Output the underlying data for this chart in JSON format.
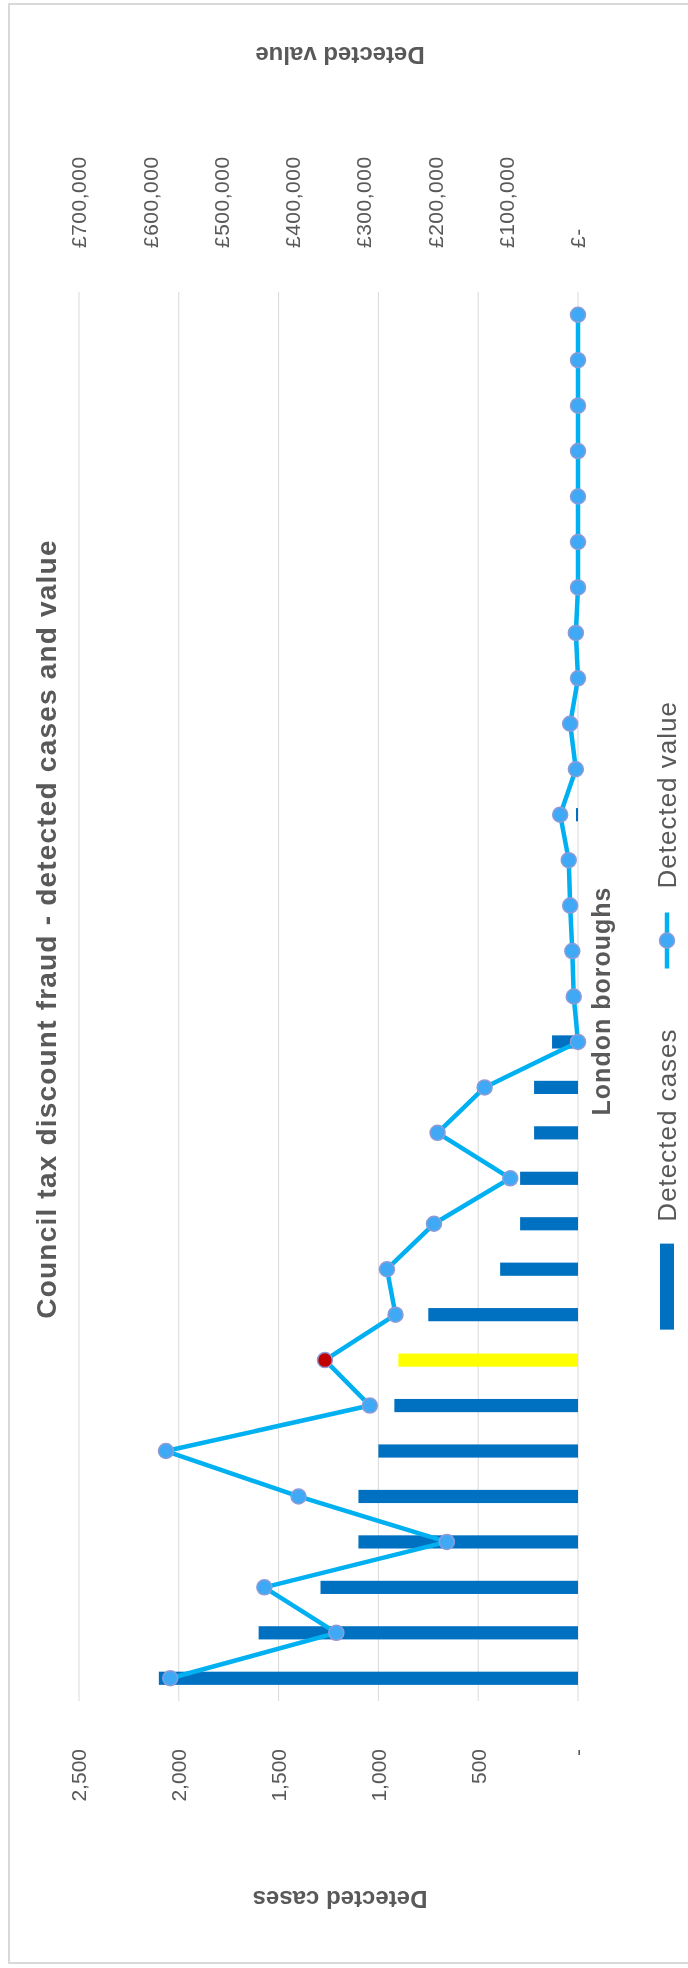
{
  "chart_data": {
    "type": "bar",
    "orientation": "horizontal",
    "title": "Council tax discount fraud - detected cases and value",
    "ylabel": "London boroughs",
    "xlabel": "Detected cases",
    "x2label": "Detected value",
    "categories": [
      null,
      null,
      null,
      null,
      null,
      null,
      null,
      null,
      null,
      null,
      null,
      null,
      null,
      null,
      null,
      null,
      null,
      null,
      null,
      null,
      null,
      null,
      null,
      null,
      null,
      null,
      null,
      null,
      null,
      null,
      null
    ],
    "series": [
      {
        "name": "Detected cases",
        "color": "#0070c0",
        "colors": [
          "#0070c0",
          "#0070c0",
          "#0070c0",
          "#0070c0",
          "#0070c0",
          "#0070c0",
          "#0070c0",
          "#0070c0",
          "#0070c0",
          "#0070c0",
          "#0070c0",
          "#0070c0",
          "#0070c0",
          "#0070c0",
          "#0070c0",
          "#0070c0",
          "#0070c0",
          "#0070c0",
          "#0070c0",
          "#0070c0",
          "#0070c0",
          "#0070c0",
          "#0070c0",
          "#ffff00",
          "#0070c0",
          "#0070c0",
          "#0070c0",
          "#0070c0",
          "#0070c0",
          "#0070c0",
          "#0070c0"
        ],
        "values": [
          0,
          0,
          0,
          0,
          0,
          0,
          0,
          0,
          0,
          0,
          0,
          10,
          0,
          0,
          0,
          0,
          130,
          220,
          220,
          290,
          290,
          390,
          750,
          900,
          920,
          1000,
          1100,
          1100,
          1290,
          1600,
          2100
        ]
      },
      {
        "name": "Detected value",
        "type": "line",
        "axis": "x2",
        "color": "#00b0f0",
        "colors": [
          "#3fa9f5",
          "#3fa9f5",
          "#3fa9f5",
          "#3fa9f5",
          "#3fa9f5",
          "#3fa9f5",
          "#3fa9f5",
          "#3fa9f5",
          "#3fa9f5",
          "#3fa9f5",
          "#3fa9f5",
          "#3fa9f5",
          "#3fa9f5",
          "#3fa9f5",
          "#3fa9f5",
          "#3fa9f5",
          "#3fa9f5",
          "#3fa9f5",
          "#3fa9f5",
          "#3fa9f5",
          "#3fa9f5",
          "#3fa9f5",
          "#3fa9f5",
          "#c00000",
          "#3fa9f5",
          "#3fa9f5",
          "#3fa9f5",
          "#3fa9f5",
          "#3fa9f5",
          "#3fa9f5",
          "#3fa9f5"
        ],
        "values": [
          0,
          0,
          0,
          0,
          0,
          0,
          0,
          3000,
          0,
          11000,
          3000,
          25000,
          13000,
          11000,
          8000,
          6000,
          0,
          131000,
          197000,
          95000,
          202000,
          268000,
          256000,
          355000,
          292000,
          578000,
          392000,
          184000,
          440000,
          339000,
          572000
        ]
      }
    ],
    "xlim": [
      2500,
      0
    ],
    "xticks": [
      {
        "value": 2500,
        "label": "2,500"
      },
      {
        "value": 2000,
        "label": "2,000"
      },
      {
        "value": 1500,
        "label": "1,500"
      },
      {
        "value": 1000,
        "label": "1,000"
      },
      500,
      {
        "value": 0,
        "label": "-"
      }
    ],
    "x2lim": [
      700000,
      0
    ],
    "x2ticks": [
      {
        "value": 700000,
        "label": "£700,000"
      },
      {
        "value": 600000,
        "label": "£600,000"
      },
      {
        "value": 500000,
        "label": "£500,000"
      },
      {
        "value": 400000,
        "label": "£400,000"
      },
      {
        "value": 300000,
        "label": "£300,000"
      },
      {
        "value": 200000,
        "label": "£200,000"
      },
      {
        "value": 100000,
        "label": "£100,000"
      },
      {
        "value": 0,
        "label": "£-"
      }
    ],
    "grid": "x",
    "legend": "right",
    "marker": "circle"
  }
}
